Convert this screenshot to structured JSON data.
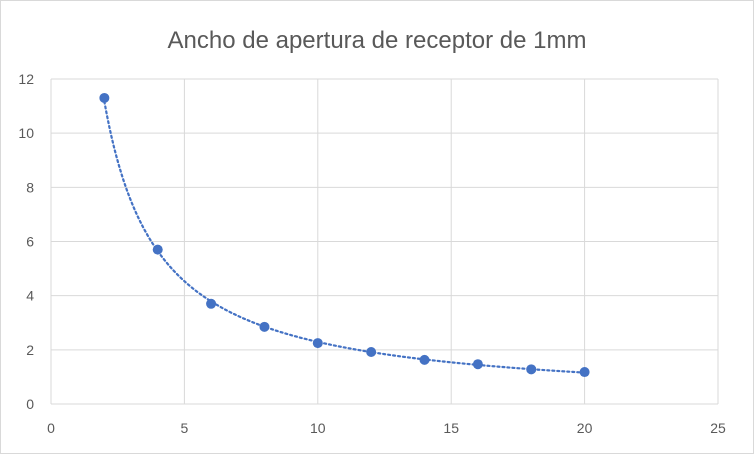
{
  "chart_data": {
    "type": "scatter",
    "title": "Ancho de apertura de receptor de 1mm",
    "xlabel": "",
    "ylabel": "",
    "xlim": [
      0,
      25
    ],
    "ylim": [
      0,
      12
    ],
    "xticks": [
      0,
      5,
      10,
      15,
      20,
      25
    ],
    "yticks": [
      0,
      2,
      4,
      6,
      8,
      10,
      12
    ],
    "grid": true,
    "legend": "none",
    "trendline": "dotted power fit",
    "series": [
      {
        "x": [
          2,
          4,
          6,
          8,
          10,
          12,
          14,
          16,
          18,
          20
        ],
        "y": [
          11.3,
          5.7,
          3.7,
          2.85,
          2.25,
          1.92,
          1.63,
          1.47,
          1.28,
          1.18
        ],
        "color": "#4472c4"
      }
    ]
  }
}
